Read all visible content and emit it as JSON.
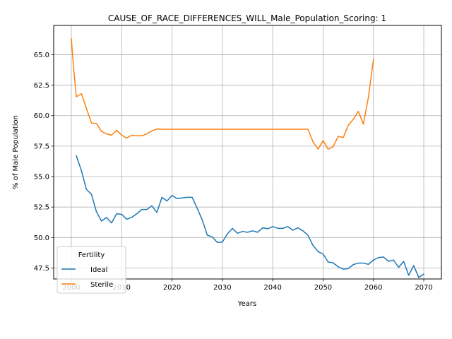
{
  "chart_data": {
    "type": "line",
    "title": "CAUSE_OF_RACE_DIFFERENCES_WILL_Male_Population_Scoring: 1",
    "xlabel": "Years",
    "ylabel": "% of Male Population",
    "xlim": [
      1996.5,
      2073.5
    ],
    "ylim": [
      46.6,
      67.4
    ],
    "xticks": [
      2000,
      2010,
      2020,
      2030,
      2040,
      2050,
      2060,
      2070
    ],
    "yticks": [
      47.5,
      50.0,
      52.5,
      55.0,
      57.5,
      60.0,
      62.5,
      65.0
    ],
    "grid": true,
    "legend": {
      "title": "Fertility",
      "position": "lower-left"
    },
    "series": [
      {
        "name": "Ideal",
        "color": "#1f77b4",
        "x": [
          2001,
          2002,
          2003,
          2004,
          2005,
          2006,
          2007,
          2008,
          2009,
          2010,
          2011,
          2012,
          2013,
          2014,
          2015,
          2016,
          2017,
          2018,
          2019,
          2020,
          2021,
          2022,
          2023,
          2024,
          2025,
          2026,
          2027,
          2028,
          2029,
          2030,
          2031,
          2032,
          2033,
          2034,
          2035,
          2036,
          2037,
          2038,
          2039,
          2040,
          2041,
          2042,
          2043,
          2044,
          2045,
          2046,
          2047,
          2048,
          2049,
          2050,
          2051,
          2052,
          2053,
          2054,
          2055,
          2056,
          2057,
          2058,
          2059,
          2060,
          2061,
          2062,
          2063,
          2064,
          2065,
          2066,
          2067,
          2068,
          2069,
          2070
        ],
        "y": [
          56.7,
          55.5,
          53.95,
          53.55,
          52.1,
          51.35,
          51.65,
          51.2,
          51.95,
          51.9,
          51.5,
          51.65,
          51.95,
          52.3,
          52.3,
          52.6,
          52.05,
          53.3,
          53.0,
          53.45,
          53.2,
          53.25,
          53.3,
          53.3,
          52.4,
          51.45,
          50.2,
          50.05,
          49.6,
          49.62,
          50.3,
          50.75,
          50.35,
          50.5,
          50.43,
          50.55,
          50.43,
          50.8,
          50.72,
          50.9,
          50.76,
          50.75,
          50.9,
          50.6,
          50.8,
          50.55,
          50.18,
          49.35,
          48.85,
          48.65,
          48.0,
          47.92,
          47.6,
          47.4,
          47.45,
          47.78,
          47.9,
          47.9,
          47.8,
          48.15,
          48.35,
          48.4,
          48.05,
          48.15,
          47.55,
          48.05,
          46.9,
          47.7,
          46.72,
          47.0
        ]
      },
      {
        "name": "Sterile",
        "color": "#ff7f0e",
        "x": [
          2000,
          2000.5,
          2001,
          2002,
          2003,
          2004,
          2005,
          2006,
          2007,
          2008,
          2009,
          2010,
          2011,
          2012,
          2013,
          2014,
          2015,
          2016,
          2017,
          2018,
          2019,
          2020,
          2021,
          2022,
          2023,
          2024,
          2025,
          2026,
          2027,
          2028,
          2029,
          2030,
          2031,
          2032,
          2033,
          2034,
          2035,
          2036,
          2037,
          2038,
          2039,
          2040,
          2041,
          2042,
          2043,
          2044,
          2045,
          2046,
          2047,
          2048,
          2049,
          2050,
          2051,
          2052,
          2053,
          2054,
          2055,
          2056,
          2057,
          2058,
          2059,
          2060
        ],
        "y": [
          66.3,
          63.7,
          61.55,
          61.8,
          60.6,
          59.4,
          59.35,
          58.7,
          58.5,
          58.4,
          58.8,
          58.4,
          58.15,
          58.4,
          58.35,
          58.35,
          58.5,
          58.75,
          58.9,
          58.88,
          58.88,
          58.88,
          58.88,
          58.88,
          58.88,
          58.88,
          58.88,
          58.88,
          58.88,
          58.88,
          58.88,
          58.88,
          58.88,
          58.88,
          58.88,
          58.88,
          58.88,
          58.88,
          58.88,
          58.88,
          58.88,
          58.88,
          58.88,
          58.88,
          58.88,
          58.88,
          58.88,
          58.88,
          58.88,
          57.85,
          57.25,
          57.95,
          57.25,
          57.45,
          58.3,
          58.2,
          59.2,
          59.7,
          60.35,
          59.3,
          61.5,
          64.6
        ]
      }
    ]
  }
}
